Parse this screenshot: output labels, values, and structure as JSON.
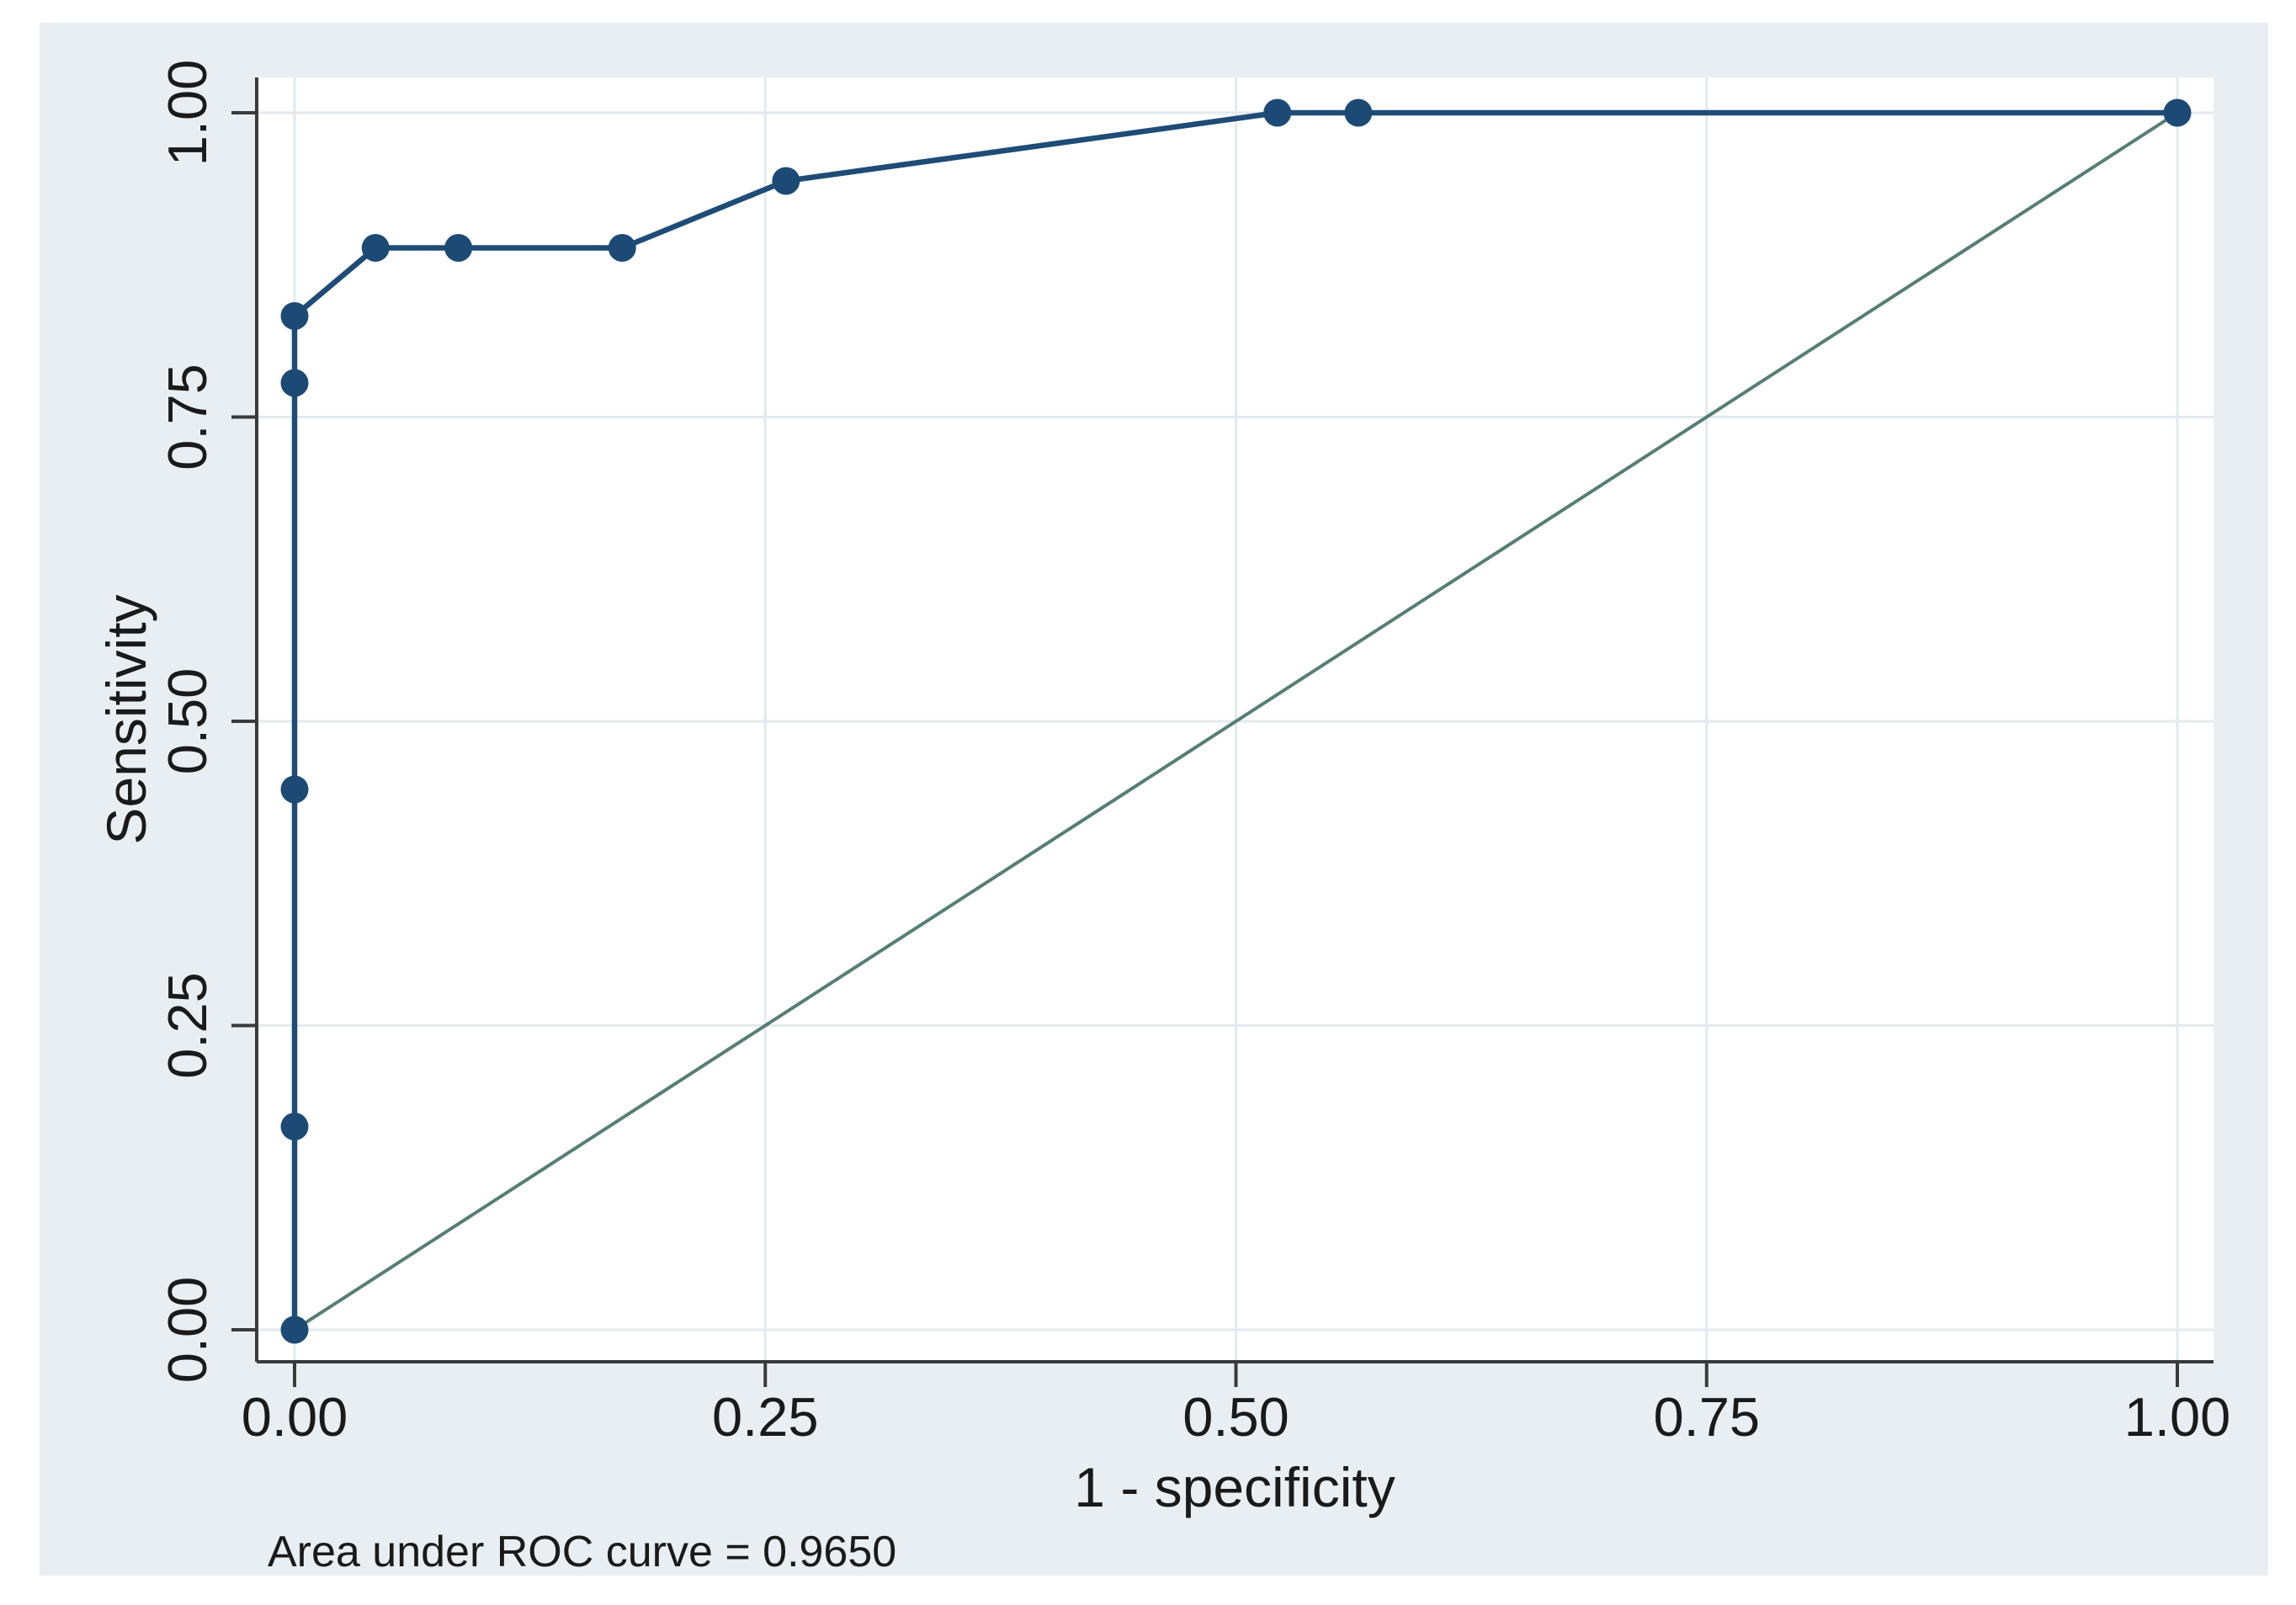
{
  "colors": {
    "figure_bg": "#e8eef2",
    "plot_bg": "#ffffff",
    "grid": "#e3eaef",
    "axis": "#3a3a3a",
    "text": "#1a1a1a",
    "roc_line": "#1e4c77",
    "roc_marker": "#1c4a75",
    "reference_line": "#567e74"
  },
  "chart_data": {
    "type": "line",
    "xlabel": "1 - specificity",
    "ylabel": "Sensitivity",
    "note": "Area under ROC curve = 0.9650",
    "auc": 0.965,
    "xlim": [
      0,
      1
    ],
    "ylim": [
      0,
      1
    ],
    "grid": true,
    "legend": "none",
    "x_ticks": {
      "values": [
        0,
        0.25,
        0.5,
        0.75,
        1
      ],
      "labels": [
        "0.00",
        "0.25",
        "0.50",
        "0.75",
        "1.00"
      ]
    },
    "y_ticks": {
      "values": [
        0,
        0.25,
        0.5,
        0.75,
        1
      ],
      "labels": [
        "0.00",
        "0.25",
        "0.50",
        "0.75",
        "1.00"
      ]
    },
    "series": [
      {
        "name": "ROC curve",
        "style": "line_with_markers",
        "points": [
          [
            0,
            0
          ],
          [
            0,
            0.167
          ],
          [
            0,
            0.444
          ],
          [
            0,
            0.778
          ],
          [
            0,
            0.833
          ],
          [
            0.043,
            0.889
          ],
          [
            0.087,
            0.889
          ],
          [
            0.174,
            0.889
          ],
          [
            0.261,
            0.944
          ],
          [
            0.522,
            1.0
          ],
          [
            0.565,
            1.0
          ],
          [
            1.0,
            1.0
          ]
        ]
      },
      {
        "name": "Reference diagonal (chance line)",
        "style": "line",
        "points": [
          [
            0,
            0
          ],
          [
            1,
            1
          ]
        ]
      }
    ]
  }
}
